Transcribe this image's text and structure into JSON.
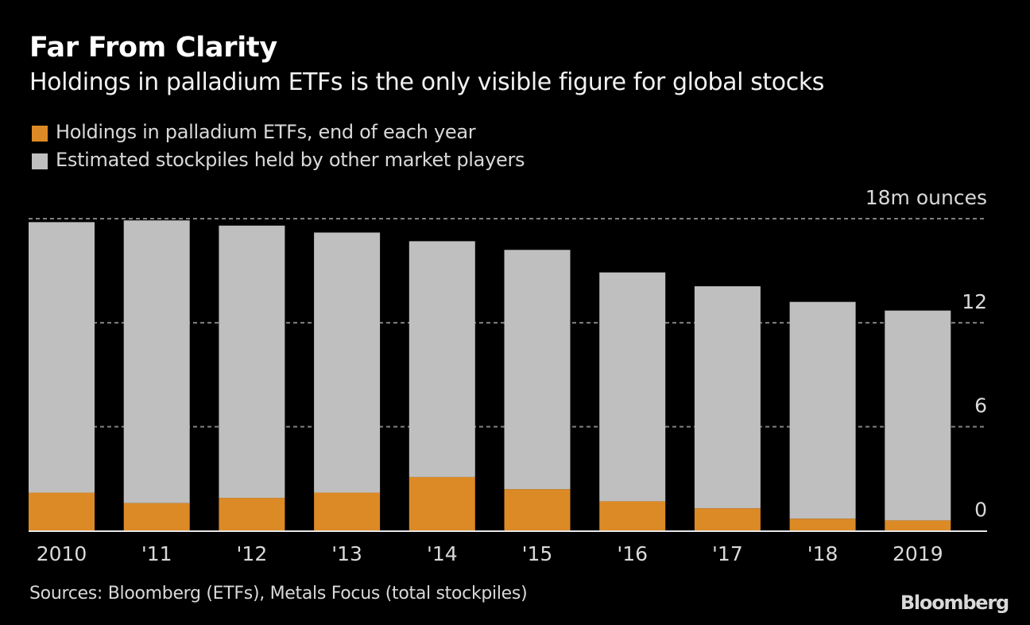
{
  "header": {
    "title": "Far From Clarity",
    "subtitle": "Holdings in palladium ETFs is the only visible figure for global stocks"
  },
  "footer": {
    "source": "Sources: Bloomberg (ETFs), Metals Focus (total stockpiles)",
    "brand": "Bloomberg"
  },
  "chart_data": {
    "type": "bar",
    "stacked": true,
    "title": "Far From Clarity",
    "subtitle": "Holdings in palladium ETFs is the only visible figure for global stocks",
    "xlabel": "",
    "ylabel": "m ounces",
    "y_unit_label": "18m ounces",
    "categories": [
      "2010",
      "'11",
      "'12",
      "'13",
      "'14",
      "'15",
      "'16",
      "'17",
      "'18",
      "2019"
    ],
    "series": [
      {
        "name": "Holdings in palladium ETFs, end of each year",
        "color": "#dc8a26",
        "values": [
          2.2,
          1.6,
          1.9,
          2.2,
          3.1,
          2.4,
          1.7,
          1.3,
          0.7,
          0.6
        ]
      },
      {
        "name": "Estimated stockpiles held by other market players",
        "color": "#bfbfbf",
        "values": [
          15.6,
          16.3,
          15.7,
          15.0,
          13.6,
          13.8,
          13.2,
          12.8,
          12.5,
          12.1
        ]
      }
    ],
    "totals": [
      17.8,
      17.9,
      17.6,
      17.2,
      16.7,
      16.2,
      14.9,
      14.1,
      13.2,
      12.7
    ],
    "ylim": [
      0,
      18
    ],
    "yticks": [
      0,
      6,
      12,
      18
    ],
    "ytick_labels": [
      "0",
      "6",
      "12",
      "18m ounces"
    ],
    "grid": true,
    "legend_position": "top-left",
    "colors": {
      "background": "#000000",
      "etf": "#dc8a26",
      "other": "#bfbfbf",
      "grid": "#808080",
      "text": "#d9d9d9"
    }
  }
}
